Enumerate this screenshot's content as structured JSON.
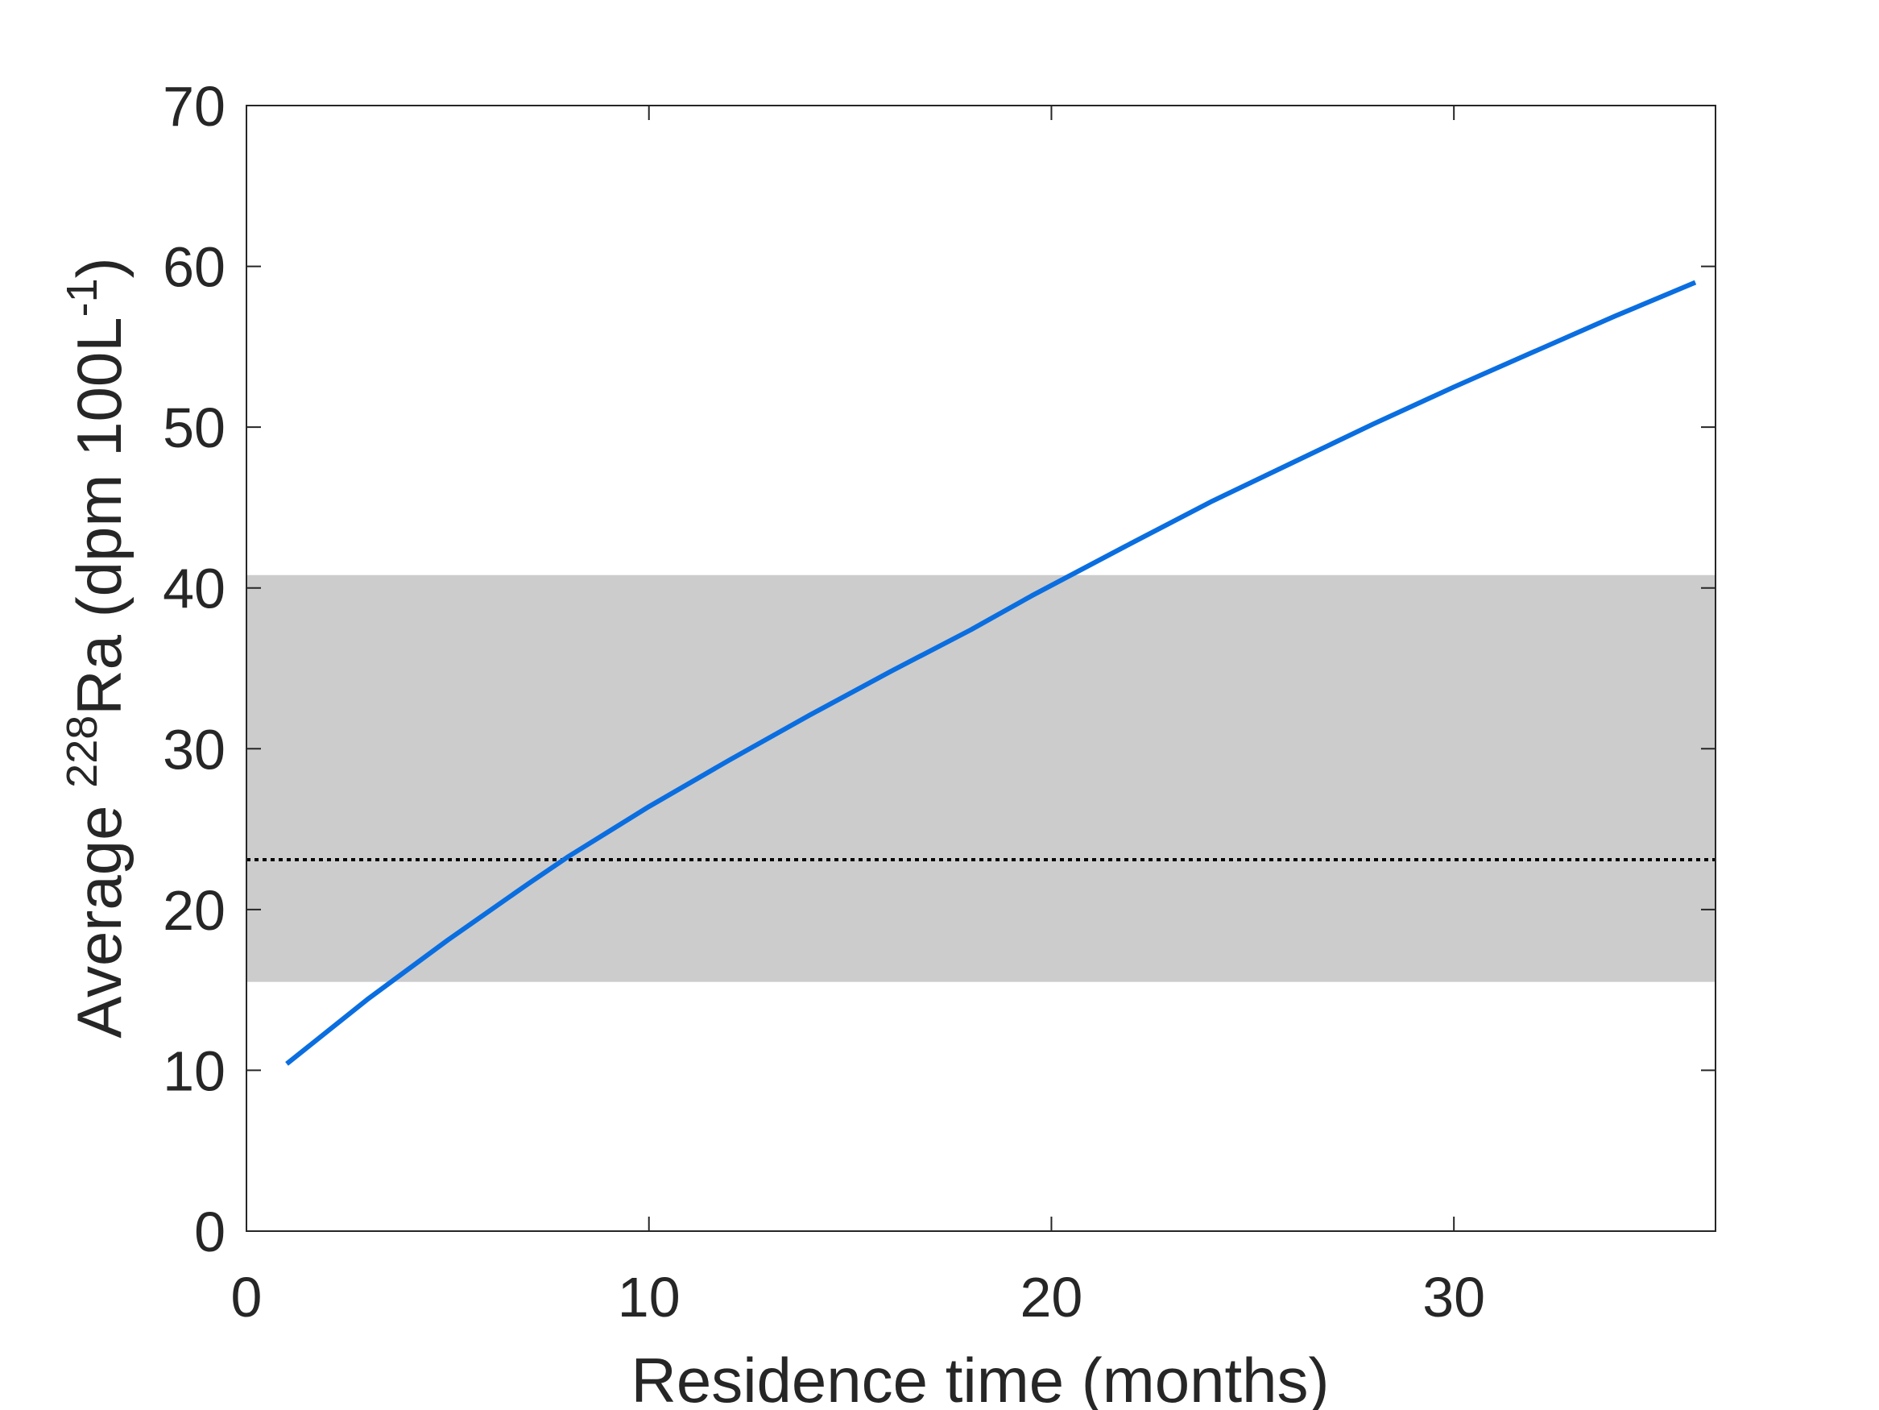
{
  "chart_data": {
    "type": "line",
    "xlabel": "Residence time (months)",
    "ylabel": {
      "prefix": "Average ",
      "isotope_mass": "228",
      "element": "Ra",
      "unit_open": " (dpm 100L",
      "unit_exp": "-1",
      "unit_close": ")"
    },
    "xlim": [
      0,
      36.5
    ],
    "ylim": [
      0,
      70
    ],
    "xticks": [
      0,
      10,
      20,
      30
    ],
    "yticks": [
      0,
      10,
      20,
      30,
      40,
      50,
      60,
      70
    ],
    "xtick_labels": [
      "0",
      "10",
      "20",
      "30"
    ],
    "ytick_labels": [
      "0",
      "10",
      "20",
      "30",
      "40",
      "50",
      "60",
      "70"
    ],
    "grid": false,
    "series": [
      {
        "color": "#0a6ee0",
        "x": [
          1,
          3,
          5,
          7,
          8,
          10,
          12,
          14,
          16,
          18,
          19.5,
          22,
          24,
          26,
          28,
          30,
          32,
          34,
          36
        ],
        "y": [
          10.4,
          14.4,
          18.1,
          21.6,
          23.3,
          26.4,
          29.3,
          32.1,
          34.8,
          37.4,
          39.5,
          42.8,
          45.4,
          47.8,
          50.2,
          52.5,
          54.7,
          56.9,
          59.0
        ]
      }
    ],
    "band": {
      "y_low": 15.5,
      "y_high": 40.8,
      "color": "#cccccc"
    },
    "reference_line": {
      "y": 23.1,
      "color": "#000000",
      "style": "dotted"
    }
  }
}
